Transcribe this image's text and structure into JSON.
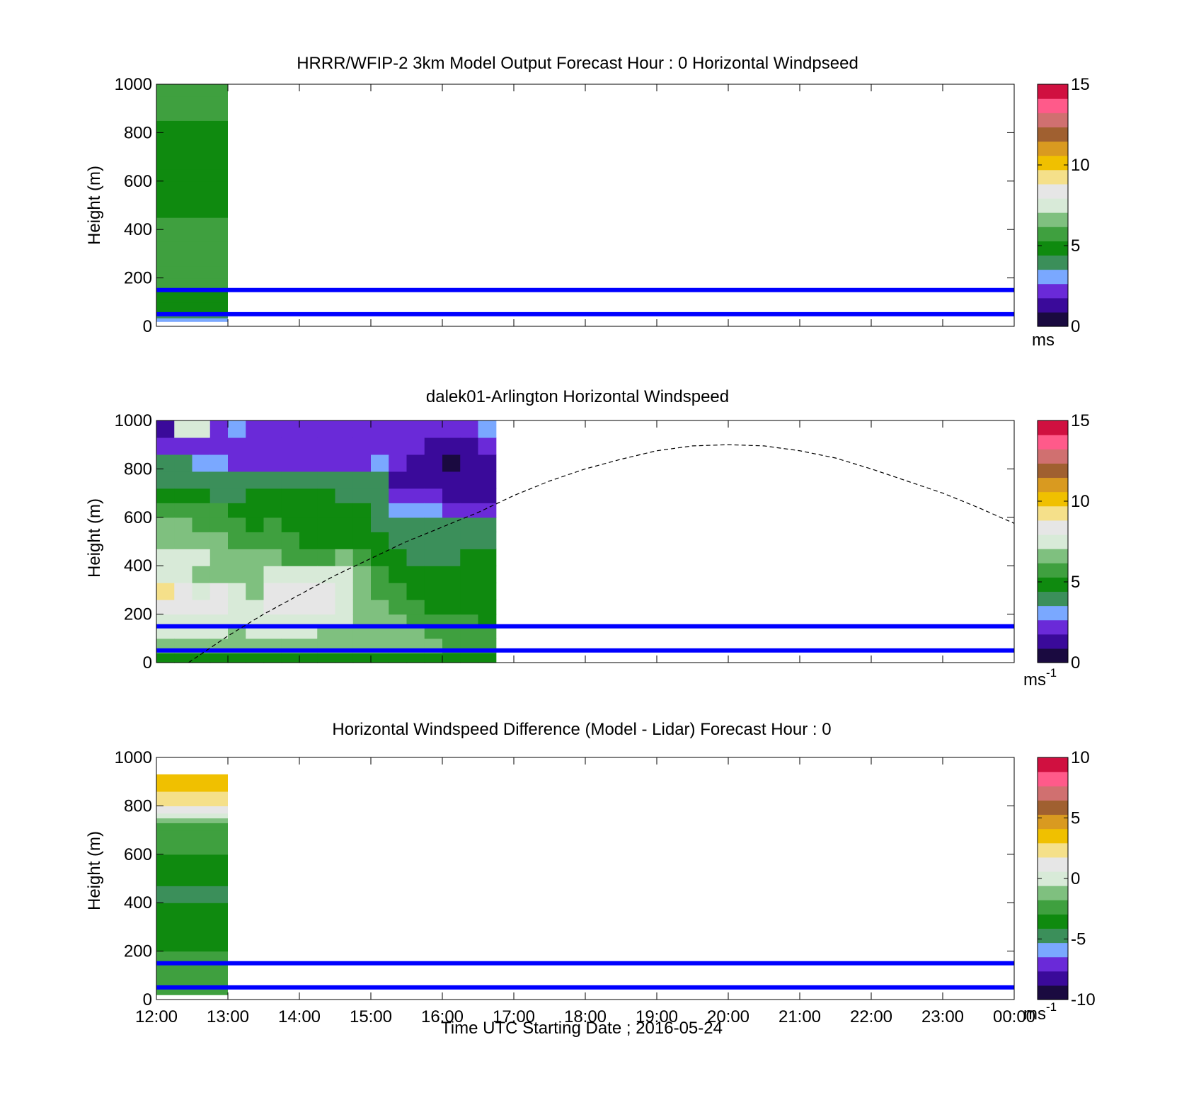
{
  "colormaps": {
    "windspeed": [
      "#1a0a40",
      "#3a0a9a",
      "#6a2ad8",
      "#7aa8ff",
      "#3b8f5a",
      "#0f8a0f",
      "#3fa03f",
      "#7fc07f",
      "#d8ead8",
      "#e6e6e6",
      "#f5e08a",
      "#f0c000",
      "#d99a20",
      "#a06030",
      "#d07070",
      "#ff5a8a",
      "#d01040"
    ],
    "difference": [
      "#1a0a40",
      "#3a0a9a",
      "#6a2ad8",
      "#7aa8ff",
      "#3b8f5a",
      "#0f8a0f",
      "#3fa03f",
      "#7fc07f",
      "#d8ead8",
      "#e6e6e6",
      "#f5e08a",
      "#f0c000",
      "#d99a20",
      "#a06030",
      "#d07070",
      "#ff5a8a",
      "#d01040"
    ]
  },
  "reference_lines": {
    "heights_m": [
      150,
      50
    ],
    "color": "#0000ff"
  },
  "chart_data": [
    {
      "id": "model",
      "type": "heatmap",
      "title": "HRRR/WFIP-2 3km Model Output   Forecast Hour : 0 Horizontal Windpseed",
      "xlabel": "",
      "ylabel": "Height (m)",
      "xlim": [
        12,
        24
      ],
      "ylim": [
        0,
        1000
      ],
      "yticks": [
        0,
        200,
        400,
        600,
        800,
        1000
      ],
      "xticks": [
        12,
        13,
        14,
        15,
        16,
        17,
        18,
        19,
        20,
        21,
        22,
        23,
        24
      ],
      "show_xtick_labels": false,
      "colorbar": {
        "min": 0,
        "max": 15,
        "ticks": [
          0,
          5,
          10,
          15
        ],
        "unit": "ms",
        "unit_sup": "",
        "cmap": "windspeed"
      },
      "grid": false,
      "columns": [
        {
          "t0": 12,
          "t1": 13,
          "cells": [
            [
              20,
              35,
              2.8
            ],
            [
              35,
              60,
              4.2
            ],
            [
              60,
              100,
              4.6
            ],
            [
              100,
              150,
              4.9
            ],
            [
              150,
              200,
              5.3
            ],
            [
              200,
              250,
              5.8
            ],
            [
              250,
              300,
              6.0
            ],
            [
              300,
              350,
              5.8
            ],
            [
              350,
              400,
              5.6
            ],
            [
              400,
              450,
              5.4
            ],
            [
              450,
              500,
              5.2
            ],
            [
              500,
              550,
              5.1
            ],
            [
              550,
              600,
              5.0
            ],
            [
              600,
              650,
              5.0
            ],
            [
              650,
              700,
              4.9
            ],
            [
              700,
              750,
              4.9
            ],
            [
              750,
              800,
              5.0
            ],
            [
              800,
              850,
              5.1
            ],
            [
              850,
              900,
              5.5
            ],
            [
              900,
              950,
              5.9
            ],
            [
              950,
              1000,
              6.1
            ]
          ]
        }
      ]
    },
    {
      "id": "lidar",
      "type": "heatmap",
      "title": "dalek01-Arlington  Horizontal Windspeed",
      "xlabel": "",
      "ylabel": "Height (m)",
      "xlim": [
        12,
        24
      ],
      "ylim": [
        0,
        1000
      ],
      "yticks": [
        0,
        200,
        400,
        600,
        800,
        1000
      ],
      "xticks": [
        12,
        13,
        14,
        15,
        16,
        17,
        18,
        19,
        20,
        21,
        22,
        23,
        24
      ],
      "show_xtick_labels": false,
      "colorbar": {
        "min": 0,
        "max": 15,
        "ticks": [
          0,
          5,
          10,
          15
        ],
        "unit": "ms",
        "unit_sup": "-1",
        "cmap": "windspeed"
      },
      "grid": false,
      "profile_columns": {
        "start": 12,
        "step": 0.25,
        "count": 19,
        "layers_m": [
          [
            0,
            40
          ],
          [
            40,
            100
          ],
          [
            100,
            150
          ],
          [
            150,
            200
          ],
          [
            200,
            260
          ],
          [
            260,
            330
          ],
          [
            330,
            400
          ],
          [
            400,
            470
          ],
          [
            470,
            540
          ],
          [
            540,
            600
          ],
          [
            600,
            660
          ],
          [
            660,
            720
          ],
          [
            720,
            790
          ],
          [
            790,
            860
          ],
          [
            860,
            930
          ],
          [
            930,
            1000
          ]
        ],
        "values": [
          [
            5.2,
            6.8,
            7.2,
            7.8,
            8.6,
            8.9,
            7.6,
            7.4,
            6.4,
            6.2,
            5.9,
            4.8,
            4.2,
            3.8,
            2.6,
            1.6
          ],
          [
            5.0,
            6.7,
            7.1,
            7.6,
            8.4,
            8.8,
            7.9,
            7.3,
            6.7,
            6.3,
            5.8,
            4.7,
            4.0,
            3.6,
            2.4,
            7.2
          ],
          [
            4.9,
            6.9,
            7.4,
            7.4,
            8.1,
            7.7,
            7.0,
            7.2,
            6.6,
            6.0,
            5.4,
            4.6,
            3.8,
            3.2,
            2.6,
            7.8
          ],
          [
            5.1,
            6.8,
            7.2,
            7.5,
            8.2,
            8.0,
            6.8,
            7.0,
            6.5,
            5.9,
            5.3,
            4.4,
            3.8,
            2.8,
            2.4,
            2.2
          ],
          [
            5.0,
            6.6,
            7.0,
            7.3,
            7.6,
            7.2,
            6.4,
            6.5,
            6.0,
            5.6,
            5.0,
            4.4,
            3.8,
            2.6,
            2.6,
            3.2
          ],
          [
            4.9,
            6.7,
            7.1,
            7.2,
            7.4,
            7.0,
            6.2,
            6.2,
            5.8,
            5.2,
            4.8,
            4.6,
            4.0,
            2.4,
            2.2,
            2.6
          ],
          [
            5.0,
            6.8,
            7.2,
            7.8,
            8.5,
            8.8,
            7.7,
            6.4,
            5.6,
            5.4,
            4.8,
            4.6,
            3.9,
            2.2,
            2.0,
            2.4
          ],
          [
            4.9,
            6.6,
            7.2,
            7.8,
            8.4,
            8.6,
            7.9,
            5.9,
            5.4,
            5.0,
            4.8,
            4.6,
            4.2,
            2.4,
            2.0,
            2.2
          ],
          [
            4.8,
            6.7,
            7.1,
            7.6,
            8.2,
            8.4,
            7.7,
            5.4,
            5.2,
            5.0,
            4.6,
            4.5,
            4.1,
            2.2,
            1.8,
            2.4
          ],
          [
            4.9,
            6.6,
            7.0,
            7.5,
            8.0,
            8.2,
            7.6,
            5.8,
            5.0,
            4.8,
            4.6,
            4.5,
            4.0,
            2.4,
            1.8,
            2.2
          ],
          [
            4.8,
            6.6,
            6.9,
            7.1,
            7.4,
            7.5,
            7.2,
            6.2,
            5.2,
            4.8,
            4.6,
            4.4,
            4.2,
            2.6,
            2.0,
            1.8
          ],
          [
            4.7,
            6.6,
            6.8,
            6.8,
            6.6,
            6.4,
            6.2,
            6.0,
            5.0,
            4.6,
            4.6,
            4.4,
            4.0,
            2.6,
            2.0,
            1.8
          ],
          [
            4.8,
            6.5,
            6.6,
            6.4,
            6.2,
            5.8,
            5.6,
            4.8,
            4.5,
            4.4,
            4.2,
            4.4,
            4.2,
            2.8,
            2.2,
            2.0
          ],
          [
            4.6,
            6.5,
            6.4,
            6.2,
            5.8,
            5.4,
            5.0,
            4.6,
            4.2,
            4.1,
            3.2,
            2.2,
            1.6,
            1.8,
            2.4,
            2.4
          ],
          [
            4.6,
            6.4,
            6.2,
            5.8,
            5.4,
            5.0,
            4.8,
            4.4,
            4.2,
            3.8,
            3.0,
            2.2,
            1.4,
            1.2,
            1.8,
            2.6
          ],
          [
            4.5,
            6.2,
            6.0,
            5.6,
            5.2,
            4.8,
            4.6,
            4.4,
            4.0,
            3.6,
            2.8,
            1.8,
            1.2,
            1.0,
            1.6,
            2.4
          ],
          [
            4.6,
            6.0,
            5.8,
            5.4,
            5.0,
            4.8,
            4.6,
            4.4,
            4.1,
            3.6,
            2.2,
            1.4,
            1.0,
            0.8,
            1.4,
            2.2
          ],
          [
            4.5,
            5.8,
            5.7,
            5.3,
            5.0,
            4.8,
            4.7,
            4.6,
            4.2,
            3.8,
            2.6,
            1.6,
            1.2,
            1.0,
            1.6,
            2.6
          ],
          [
            4.6,
            5.6,
            5.6,
            5.2,
            4.9,
            4.7,
            4.6,
            4.5,
            4.3,
            3.9,
            2.4,
            1.6,
            1.4,
            1.2,
            2.0,
            2.8
          ]
        ]
      },
      "curve": {
        "style": "dashed",
        "color": "#000000",
        "x": [
          12.45,
          12.75,
          13.0,
          13.5,
          14.0,
          14.5,
          15.0,
          15.5,
          16.0,
          16.5,
          17.0,
          17.5,
          18.0,
          18.5,
          19.0,
          19.5,
          20.0,
          20.5,
          21.0,
          21.5,
          22.0,
          22.5,
          23.0,
          23.5,
          24.0
        ],
        "y": [
          0,
          60,
          110,
          200,
          280,
          360,
          430,
          500,
          560,
          620,
          690,
          750,
          800,
          840,
          875,
          895,
          900,
          895,
          875,
          845,
          800,
          750,
          700,
          640,
          575
        ]
      }
    },
    {
      "id": "difference",
      "type": "heatmap",
      "title": "Horizontal Windspeed Difference (Model - Lidar) Forecast Hour : 0",
      "xlabel": "Time UTC  Starting Date ; 2016-05-24",
      "ylabel": "Height (m)",
      "xlim": [
        12,
        24
      ],
      "ylim": [
        0,
        1000
      ],
      "yticks": [
        0,
        200,
        400,
        600,
        800,
        1000
      ],
      "xticks": [
        12,
        13,
        14,
        15,
        16,
        17,
        18,
        19,
        20,
        21,
        22,
        23,
        24
      ],
      "xtick_labels": [
        "12:00",
        "13:00",
        "14:00",
        "15:00",
        "16:00",
        "17:00",
        "18:00",
        "19:00",
        "20:00",
        "21:00",
        "22:00",
        "23:00",
        "00:00"
      ],
      "show_xtick_labels": true,
      "colorbar": {
        "min": -10,
        "max": 10,
        "ticks": [
          -10,
          -5,
          0,
          5,
          10
        ],
        "unit": "ms",
        "unit_sup": "-1",
        "cmap": "difference"
      },
      "grid": false,
      "columns": [
        {
          "t0": 12,
          "t1": 13,
          "cells": [
            [
              20,
              60,
              -2.8
            ],
            [
              60,
              120,
              -2.4
            ],
            [
              120,
              200,
              -2.8
            ],
            [
              200,
              260,
              -3.2
            ],
            [
              260,
              330,
              -3.6
            ],
            [
              330,
              400,
              -4.0
            ],
            [
              400,
              470,
              -4.2
            ],
            [
              470,
              540,
              -3.8
            ],
            [
              540,
              600,
              -3.2
            ],
            [
              600,
              660,
              -2.8
            ],
            [
              660,
              700,
              -2.4
            ],
            [
              700,
              730,
              -1.8
            ],
            [
              730,
              750,
              -0.8
            ],
            [
              750,
              770,
              0.2
            ],
            [
              770,
              800,
              1.0
            ],
            [
              800,
              830,
              1.8
            ],
            [
              830,
              860,
              2.4
            ],
            [
              860,
              890,
              3.2
            ],
            [
              890,
              930,
              4.0
            ]
          ]
        }
      ]
    }
  ]
}
